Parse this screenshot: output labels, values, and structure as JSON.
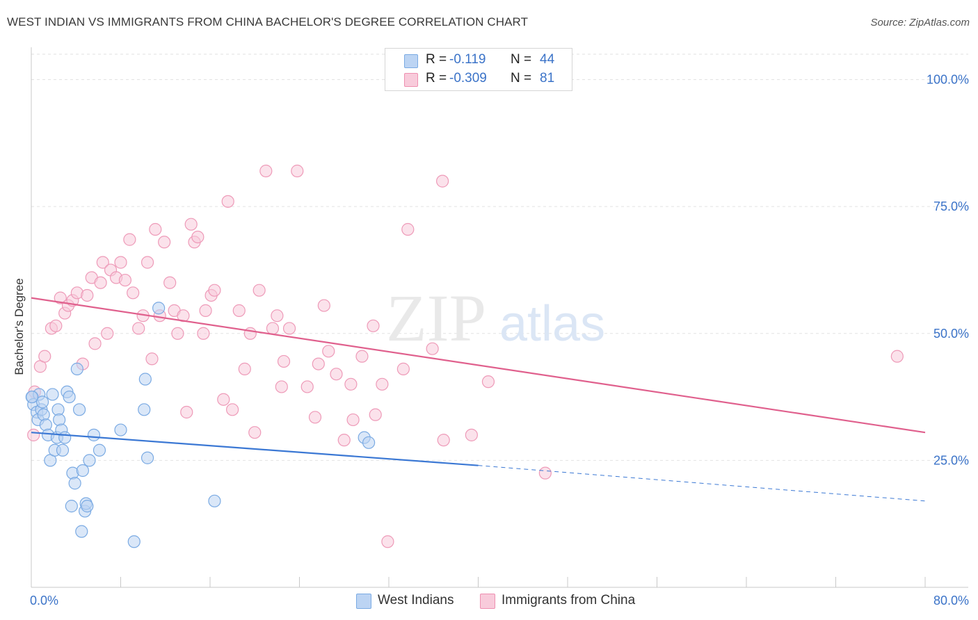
{
  "title": "WEST INDIAN VS IMMIGRANTS FROM CHINA BACHELOR'S DEGREE CORRELATION CHART",
  "source": "Source: ZipAtlas.com",
  "watermark": {
    "zip": "ZIP",
    "atlas": "atlas"
  },
  "stats": [
    {
      "r_label": "R =",
      "r_value": "-0.119",
      "n_label": "N =",
      "n_value": "44",
      "color": "#7aaae3",
      "fill": "#bcd4f3"
    },
    {
      "r_label": "R =",
      "r_value": "-0.309",
      "n_label": "N =",
      "n_value": "81",
      "color": "#ee8fb0",
      "fill": "#f8cbdb"
    }
  ],
  "legend": [
    {
      "label": "West Indians",
      "color": "#7aaae3",
      "fill": "#bcd4f3"
    },
    {
      "label": "Immigrants from China",
      "color": "#ee8fb0",
      "fill": "#f8cbdb"
    }
  ],
  "chart_data": {
    "type": "scatter",
    "title": "WEST INDIAN VS IMMIGRANTS FROM CHINA BACHELOR'S DEGREE CORRELATION CHART",
    "ylabel": "Bachelor's Degree",
    "xlabel": "",
    "xlim": [
      0,
      80
    ],
    "ylim": [
      0,
      105
    ],
    "x_tick_labels": [
      "0.0%",
      "80.0%"
    ],
    "y_ticks": [
      25,
      50,
      75,
      100
    ],
    "y_tick_labels": [
      "25.0%",
      "50.0%",
      "75.0%",
      "100.0%"
    ],
    "grid": true,
    "legend_position": "bottom-center",
    "series": [
      {
        "name": "West Indians",
        "color": "#3b78d4",
        "fill": "#bcd4f3",
        "trend": {
          "x": [
            0,
            40
          ],
          "y": [
            30.5,
            24.0
          ],
          "dashed_to_x": 80,
          "dashed_y": 17.0
        },
        "points": [
          [
            0.1,
            37.5
          ],
          [
            0.2,
            36.0
          ],
          [
            0.5,
            34.5
          ],
          [
            0.6,
            33.0
          ],
          [
            0.7,
            38.0
          ],
          [
            0.9,
            35.0
          ],
          [
            1.0,
            36.5
          ],
          [
            1.1,
            34.0
          ],
          [
            1.3,
            32.0
          ],
          [
            1.5,
            30.0
          ],
          [
            1.7,
            25.0
          ],
          [
            1.9,
            38.0
          ],
          [
            2.1,
            27.0
          ],
          [
            2.3,
            29.5
          ],
          [
            2.4,
            35.0
          ],
          [
            2.5,
            33.0
          ],
          [
            2.7,
            31.0
          ],
          [
            2.8,
            27.0
          ],
          [
            3.0,
            29.5
          ],
          [
            3.2,
            38.5
          ],
          [
            3.4,
            37.5
          ],
          [
            3.6,
            16.0
          ],
          [
            3.7,
            22.5
          ],
          [
            3.9,
            20.5
          ],
          [
            4.1,
            43.0
          ],
          [
            4.3,
            35.0
          ],
          [
            4.5,
            11.0
          ],
          [
            4.6,
            23.0
          ],
          [
            4.8,
            15.0
          ],
          [
            4.9,
            16.5
          ],
          [
            5.0,
            16.0
          ],
          [
            5.2,
            25.0
          ],
          [
            5.6,
            30.0
          ],
          [
            6.1,
            27.0
          ],
          [
            8.0,
            31.0
          ],
          [
            9.2,
            9.0
          ],
          [
            10.1,
            35.0
          ],
          [
            10.2,
            41.0
          ],
          [
            10.4,
            25.5
          ],
          [
            11.4,
            55.0
          ],
          [
            16.4,
            17.0
          ],
          [
            29.8,
            29.5
          ],
          [
            30.2,
            28.5
          ],
          [
            0.05,
            37.5
          ]
        ]
      },
      {
        "name": "Immigrants from China",
        "color": "#e0608d",
        "fill": "#f8cbdb",
        "trend": {
          "x": [
            0,
            80
          ],
          "y": [
            57.0,
            30.5
          ]
        },
        "points": [
          [
            0.2,
            30.0
          ],
          [
            0.3,
            38.5
          ],
          [
            0.8,
            43.5
          ],
          [
            1.2,
            45.5
          ],
          [
            1.8,
            51.0
          ],
          [
            2.2,
            51.5
          ],
          [
            2.6,
            57.0
          ],
          [
            3.0,
            54.0
          ],
          [
            3.3,
            55.5
          ],
          [
            3.7,
            56.5
          ],
          [
            4.1,
            58.0
          ],
          [
            4.6,
            44.0
          ],
          [
            5.0,
            57.5
          ],
          [
            5.4,
            61.0
          ],
          [
            5.7,
            48.0
          ],
          [
            6.2,
            60.0
          ],
          [
            6.4,
            64.0
          ],
          [
            6.8,
            50.0
          ],
          [
            7.1,
            62.5
          ],
          [
            7.6,
            61.0
          ],
          [
            8.0,
            64.0
          ],
          [
            8.4,
            60.5
          ],
          [
            8.8,
            68.5
          ],
          [
            9.1,
            58.0
          ],
          [
            9.6,
            51.0
          ],
          [
            10.0,
            53.5
          ],
          [
            10.4,
            64.0
          ],
          [
            10.8,
            45.0
          ],
          [
            11.1,
            70.5
          ],
          [
            11.5,
            53.5
          ],
          [
            11.9,
            68.0
          ],
          [
            12.4,
            60.0
          ],
          [
            12.8,
            54.5
          ],
          [
            13.1,
            50.0
          ],
          [
            13.6,
            53.5
          ],
          [
            13.9,
            34.5
          ],
          [
            14.3,
            71.5
          ],
          [
            14.6,
            68.0
          ],
          [
            14.9,
            69.0
          ],
          [
            15.4,
            50.0
          ],
          [
            15.6,
            54.5
          ],
          [
            16.1,
            57.5
          ],
          [
            16.4,
            58.5
          ],
          [
            17.2,
            37.0
          ],
          [
            17.6,
            76.0
          ],
          [
            18.0,
            35.0
          ],
          [
            18.6,
            54.5
          ],
          [
            19.1,
            43.0
          ],
          [
            19.6,
            50.0
          ],
          [
            20.0,
            30.5
          ],
          [
            20.4,
            58.5
          ],
          [
            21.0,
            82.0
          ],
          [
            21.6,
            51.0
          ],
          [
            22.0,
            53.5
          ],
          [
            22.4,
            39.5
          ],
          [
            22.6,
            44.5
          ],
          [
            23.1,
            51.0
          ],
          [
            23.8,
            82.0
          ],
          [
            24.7,
            39.5
          ],
          [
            25.4,
            33.5
          ],
          [
            25.7,
            44.0
          ],
          [
            26.2,
            55.5
          ],
          [
            26.6,
            46.5
          ],
          [
            27.3,
            42.0
          ],
          [
            28.0,
            29.0
          ],
          [
            28.6,
            40.0
          ],
          [
            28.8,
            33.0
          ],
          [
            29.6,
            45.5
          ],
          [
            30.6,
            51.5
          ],
          [
            30.8,
            34.0
          ],
          [
            31.4,
            40.0
          ],
          [
            31.9,
            9.0
          ],
          [
            33.3,
            43.0
          ],
          [
            33.7,
            70.5
          ],
          [
            35.9,
            47.0
          ],
          [
            36.8,
            80.0
          ],
          [
            36.9,
            29.0
          ],
          [
            39.4,
            30.0
          ],
          [
            40.9,
            40.5
          ],
          [
            46.0,
            22.5
          ],
          [
            77.5,
            45.5
          ]
        ]
      }
    ]
  }
}
